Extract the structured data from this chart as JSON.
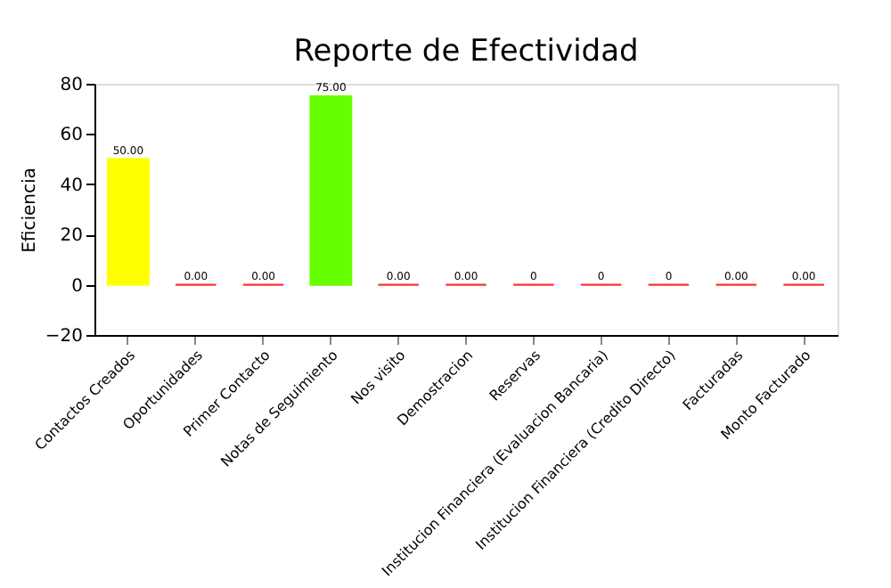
{
  "chart_data": {
    "type": "bar",
    "title": "Reporte de Efectividad",
    "ylabel": "Eficiencia",
    "categories": [
      "Contactos Creados",
      "Oportunidades",
      "Primer Contacto",
      "Notas de Seguimiento",
      "Nos visito",
      "Demostracion",
      "Reservas",
      "Institucion Financiera (Evaluacion Bancaria)",
      "Institucion Financiera (Credito Directo)",
      "Facturadas",
      "Monto Facturado"
    ],
    "values": [
      50,
      0,
      0,
      75,
      0,
      0,
      0,
      0,
      0,
      0,
      0
    ],
    "value_labels": [
      "50.00",
      "0.00",
      "0.00",
      "75.00",
      "0.00",
      "0.00",
      "0",
      "0",
      "0",
      "0.00",
      "0.00"
    ],
    "colors": [
      "#ffff00",
      "#ff3333",
      "#ff3333",
      "#66ff00",
      "#ff3333",
      "#ff3333",
      "#ff3333",
      "#ff3333",
      "#ff3333",
      "#ff3333",
      "#ff3333"
    ],
    "ylim": [
      -20,
      80
    ],
    "yticks": [
      -20,
      0,
      20,
      40,
      60,
      80
    ],
    "grid": false
  }
}
